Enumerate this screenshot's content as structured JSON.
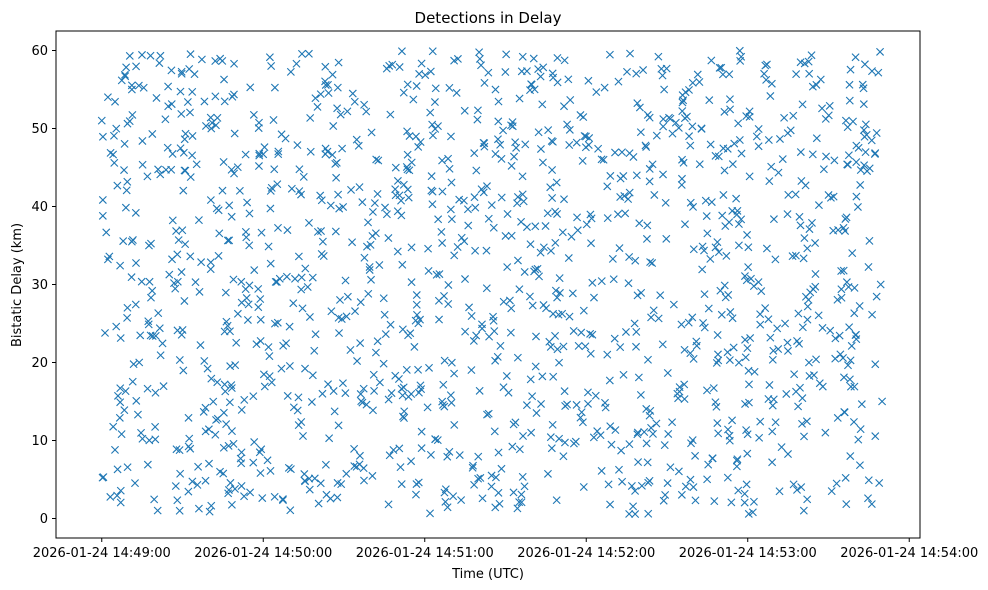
{
  "chart_data": {
    "type": "scatter",
    "title": "Detections in Delay",
    "xlabel": "Time (UTC)",
    "ylabel": "Bistatic Delay (km)",
    "marker": "x",
    "color": "#1f77b4",
    "grid": false,
    "xlim_seconds": [
      -17,
      304
    ],
    "ylim": [
      -2.5,
      62.5
    ],
    "x_time_origin": "2026-01-24 14:49:00",
    "x_data_range_seconds": [
      0,
      290
    ],
    "y_data_range": [
      0.5,
      60
    ],
    "x_ticks": [
      {
        "value": 0,
        "label": "2026-01-24 14:49:00"
      },
      {
        "value": 60,
        "label": "2026-01-24 14:50:00"
      },
      {
        "value": 120,
        "label": "2026-01-24 14:51:00"
      },
      {
        "value": 180,
        "label": "2026-01-24 14:52:00"
      },
      {
        "value": 240,
        "label": "2026-01-24 14:53:00"
      },
      {
        "value": 300,
        "label": "2026-01-24 14:54:00"
      }
    ],
    "y_ticks": [
      {
        "value": 0,
        "label": "0"
      },
      {
        "value": 10,
        "label": "10"
      },
      {
        "value": 20,
        "label": "20"
      },
      {
        "value": 30,
        "label": "30"
      },
      {
        "value": 40,
        "label": "40"
      },
      {
        "value": 50,
        "label": "50"
      },
      {
        "value": 60,
        "label": "60"
      }
    ],
    "n_points": 1400,
    "random_seed": 24
  }
}
